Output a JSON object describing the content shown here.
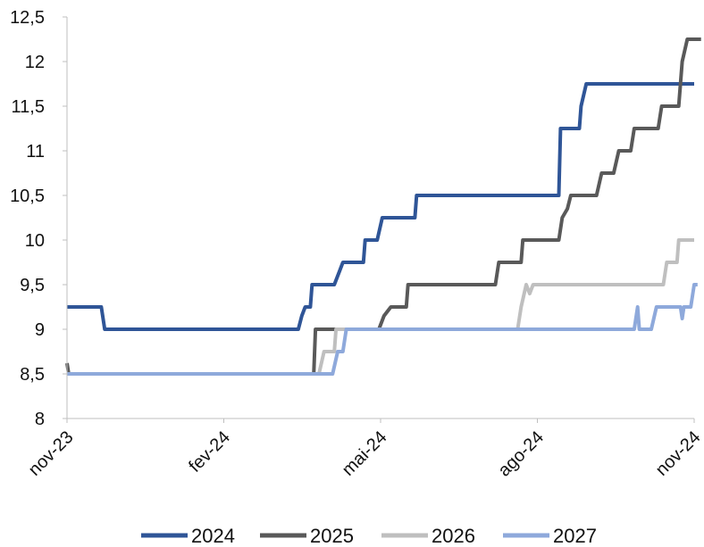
{
  "chart_data": {
    "type": "line",
    "title": "",
    "xlabel": "",
    "ylabel": "",
    "x_ticks": [
      "nov-23",
      "fev-24",
      "mai-24",
      "ago-24",
      "nov-24"
    ],
    "x_range": [
      "2023-11-01",
      "2024-11-01"
    ],
    "ylim": [
      8,
      12.5
    ],
    "y_ticks": [
      8,
      8.5,
      9,
      9.5,
      10,
      10.5,
      11,
      11.5,
      12,
      12.5
    ],
    "y_tick_labels": [
      "8",
      "8,5",
      "9",
      "9,5",
      "10",
      "10,5",
      "11",
      "11,5",
      "12",
      "12,5"
    ],
    "grid": false,
    "legend_position": "bottom",
    "series": [
      {
        "name": "2024",
        "color": "#2F5597",
        "points": [
          [
            "2023-11-01",
            9.25
          ],
          [
            "2023-11-21",
            9.25
          ],
          [
            "2023-11-23",
            9.0
          ],
          [
            "2024-03-15",
            9.0
          ],
          [
            "2024-03-17",
            9.15
          ],
          [
            "2024-03-19",
            9.25
          ],
          [
            "2024-03-22",
            9.25
          ],
          [
            "2024-03-23",
            9.5
          ],
          [
            "2024-04-05",
            9.5
          ],
          [
            "2024-04-08",
            9.65
          ],
          [
            "2024-04-10",
            9.75
          ],
          [
            "2024-04-22",
            9.75
          ],
          [
            "2024-04-23",
            10.0
          ],
          [
            "2024-04-30",
            10.0
          ],
          [
            "2024-05-03",
            10.25
          ],
          [
            "2024-05-22",
            10.25
          ],
          [
            "2024-05-23",
            10.5
          ],
          [
            "2024-08-14",
            10.5
          ],
          [
            "2024-08-15",
            11.25
          ],
          [
            "2024-08-26",
            11.25
          ],
          [
            "2024-08-27",
            11.5
          ],
          [
            "2024-08-30",
            11.75
          ],
          [
            "2024-11-01",
            11.75
          ]
        ]
      },
      {
        "name": "2025",
        "color": "#595959",
        "points": [
          [
            "2023-11-01",
            8.62
          ],
          [
            "2023-11-02",
            8.5
          ],
          [
            "2024-03-24",
            8.5
          ],
          [
            "2024-03-25",
            9.0
          ],
          [
            "2024-05-01",
            9.0
          ],
          [
            "2024-05-04",
            9.15
          ],
          [
            "2024-05-08",
            9.25
          ],
          [
            "2024-05-17",
            9.25
          ],
          [
            "2024-05-18",
            9.5
          ],
          [
            "2024-07-08",
            9.5
          ],
          [
            "2024-07-10",
            9.75
          ],
          [
            "2024-07-23",
            9.75
          ],
          [
            "2024-07-24",
            10.0
          ],
          [
            "2024-08-14",
            10.0
          ],
          [
            "2024-08-16",
            10.25
          ],
          [
            "2024-08-19",
            10.35
          ],
          [
            "2024-08-21",
            10.5
          ],
          [
            "2024-09-05",
            10.5
          ],
          [
            "2024-09-08",
            10.75
          ],
          [
            "2024-09-15",
            10.75
          ],
          [
            "2024-09-18",
            11.0
          ],
          [
            "2024-09-25",
            11.0
          ],
          [
            "2024-09-27",
            11.25
          ],
          [
            "2024-10-11",
            11.25
          ],
          [
            "2024-10-13",
            11.5
          ],
          [
            "2024-10-23",
            11.5
          ],
          [
            "2024-10-25",
            12.0
          ],
          [
            "2024-10-28",
            12.25
          ],
          [
            "2024-11-05",
            12.25
          ]
        ]
      },
      {
        "name": "2026",
        "color": "#BFBFBF",
        "points": [
          [
            "2023-11-01",
            8.5
          ],
          [
            "2024-03-27",
            8.5
          ],
          [
            "2024-03-30",
            8.75
          ],
          [
            "2024-04-05",
            8.75
          ],
          [
            "2024-04-06",
            9.0
          ],
          [
            "2024-07-21",
            9.0
          ],
          [
            "2024-07-23",
            9.25
          ],
          [
            "2024-07-26",
            9.5
          ],
          [
            "2024-07-28",
            9.4
          ],
          [
            "2024-07-30",
            9.5
          ],
          [
            "2024-10-14",
            9.5
          ],
          [
            "2024-10-16",
            9.75
          ],
          [
            "2024-10-22",
            9.75
          ],
          [
            "2024-10-23",
            10.0
          ],
          [
            "2024-11-01",
            10.0
          ]
        ]
      },
      {
        "name": "2027",
        "color": "#8EA9DB",
        "points": [
          [
            "2023-11-01",
            8.5
          ],
          [
            "2024-04-04",
            8.5
          ],
          [
            "2024-04-07",
            8.75
          ],
          [
            "2024-04-10",
            8.75
          ],
          [
            "2024-04-12",
            9.0
          ],
          [
            "2024-09-27",
            9.0
          ],
          [
            "2024-09-29",
            9.25
          ],
          [
            "2024-09-30",
            9.0
          ],
          [
            "2024-10-07",
            9.0
          ],
          [
            "2024-10-10",
            9.25
          ],
          [
            "2024-10-24",
            9.25
          ],
          [
            "2024-10-25",
            9.12
          ],
          [
            "2024-10-26",
            9.25
          ],
          [
            "2024-10-30",
            9.25
          ],
          [
            "2024-11-01",
            9.5
          ],
          [
            "2024-11-03",
            9.5
          ]
        ]
      }
    ]
  }
}
